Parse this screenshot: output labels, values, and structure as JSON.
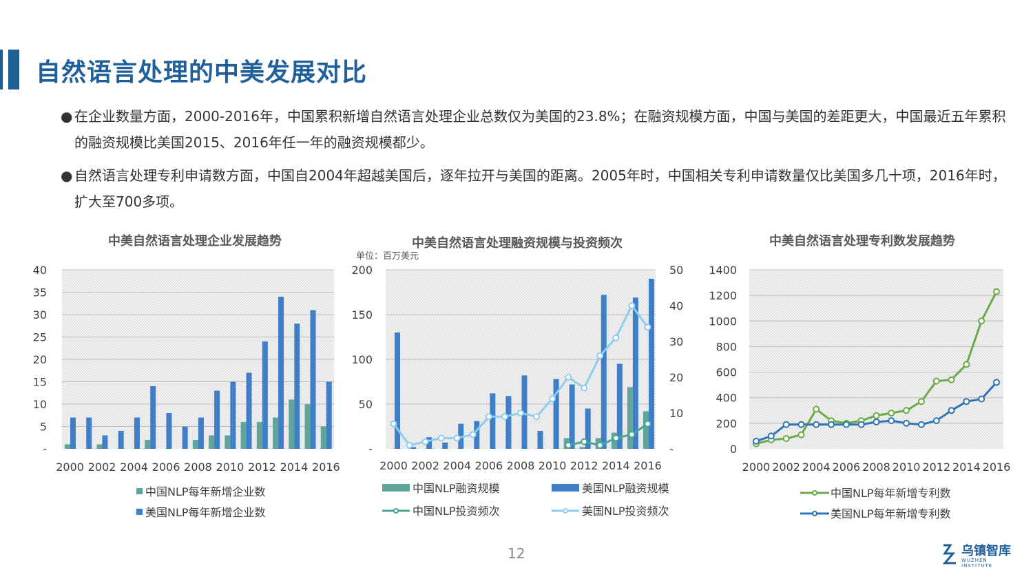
{
  "page": {
    "title": "自然语言处理的中美发展对比",
    "bullets": [
      "在企业数量方面，2000-2016年，中国累积新增自然语言处理企业总数仅为美国的23.8%；在融资规模方面，中国与美国的差距更大，中国最近五年累积的融资规模比美国2015、2016年任一年的融资规模都少。",
      "自然语言处理专利申请数方面，中国自2004年超越美国后，逐年拉开与美国的距离。2005年时，中国相关专利申请数量仅比美国多几十项，2016年时，扩大至700多项。"
    ],
    "page_number": "12",
    "logo": {
      "name": "乌镇智库",
      "sub": "WUZHEN INSTITUTE"
    },
    "colors": {
      "accent": "#1f5f9a",
      "us_bar": "#3f7fc8",
      "cn_bar": "#5fa59a",
      "cn_line_green": "#6aab46",
      "us_line_blue": "#2e75b6",
      "cn_line_teal": "#4aa596",
      "us_line_light": "#8fcdf0"
    }
  },
  "chart_data": [
    {
      "type": "bar",
      "title": "中美自然语言处理企业发展趋势",
      "categories": [
        "2000",
        "2001",
        "2002",
        "2003",
        "2004",
        "2005",
        "2006",
        "2007",
        "2008",
        "2009",
        "2010",
        "2011",
        "2012",
        "2013",
        "2014",
        "2015",
        "2016"
      ],
      "x_tick_labels": [
        "2000",
        "2002",
        "2004",
        "2006",
        "2008",
        "2010",
        "2012",
        "2014",
        "2016"
      ],
      "y_ticks": [
        "-",
        "5",
        "10",
        "15",
        "20",
        "25",
        "30",
        "35",
        "40"
      ],
      "ylim": [
        0,
        40
      ],
      "series": [
        {
          "name": "中国NLP每年新增企业数",
          "values": [
            1,
            0,
            1,
            0,
            0,
            2,
            0,
            0,
            2,
            3,
            3,
            6,
            6,
            7,
            11,
            10,
            5
          ]
        },
        {
          "name": "美国NLP每年新增企业数",
          "values": [
            7,
            7,
            3,
            4,
            7,
            14,
            8,
            5,
            7,
            13,
            15,
            17,
            24,
            34,
            28,
            31,
            15
          ]
        }
      ],
      "legend": "bottom"
    },
    {
      "type": "bar",
      "title": "中美自然语言处理融资规模与投资频次",
      "unit_label": "单位：百万美元",
      "categories": [
        "2000",
        "2001",
        "2002",
        "2003",
        "2004",
        "2005",
        "2006",
        "2007",
        "2008",
        "2009",
        "2010",
        "2011",
        "2012",
        "2013",
        "2014",
        "2015",
        "2016"
      ],
      "x_tick_labels": [
        "2000",
        "2002",
        "2004",
        "2006",
        "2008",
        "2010",
        "2012",
        "2014",
        "2016"
      ],
      "y_ticks": [
        "-",
        "50",
        "100",
        "150",
        "200"
      ],
      "y2_ticks": [
        "-",
        "10",
        "20",
        "30",
        "40",
        "50"
      ],
      "ylim": [
        0,
        200
      ],
      "y2lim": [
        0,
        50
      ],
      "series": [
        {
          "name": "中国NLP融资规模",
          "kind": "bar",
          "values": [
            0,
            0,
            0,
            0,
            0,
            0,
            0,
            0,
            0,
            0,
            0,
            12,
            2,
            12,
            18,
            69,
            42
          ]
        },
        {
          "name": "美国NLP融资规模",
          "kind": "bar",
          "values": [
            130,
            2,
            13,
            7,
            28,
            31,
            62,
            59,
            82,
            20,
            78,
            72,
            45,
            172,
            95,
            169,
            190
          ]
        },
        {
          "name": "中国NLP投资频次",
          "kind": "line",
          "axis": "right",
          "values": [
            null,
            null,
            null,
            null,
            null,
            null,
            null,
            null,
            null,
            null,
            null,
            1,
            2,
            1,
            3,
            4,
            7
          ]
        },
        {
          "name": "美国NLP投资频次",
          "kind": "line",
          "axis": "right",
          "values": [
            7,
            1,
            2,
            3,
            3,
            4,
            9,
            9,
            10,
            9,
            14,
            20,
            17,
            26,
            31,
            40,
            34
          ]
        }
      ],
      "legend": "bottom"
    },
    {
      "type": "line",
      "title": "中美自然语言处理专利数发展趋势",
      "categories": [
        "2000",
        "2001",
        "2002",
        "2003",
        "2004",
        "2005",
        "2006",
        "2007",
        "2008",
        "2009",
        "2010",
        "2011",
        "2012",
        "2013",
        "2014",
        "2015",
        "2016"
      ],
      "x_tick_labels": [
        "2000",
        "2002",
        "2004",
        "2006",
        "2008",
        "2010",
        "2012",
        "2014",
        "2016"
      ],
      "y_ticks": [
        "0",
        "200",
        "400",
        "600",
        "800",
        "1000",
        "1200",
        "1400"
      ],
      "ylim": [
        0,
        1400
      ],
      "series": [
        {
          "name": "中国NLP每年新增专利数",
          "values": [
            40,
            70,
            80,
            110,
            310,
            220,
            200,
            220,
            260,
            280,
            300,
            370,
            530,
            540,
            660,
            1000,
            1230
          ]
        },
        {
          "name": "美国NLP每年新增专利数",
          "values": [
            60,
            100,
            190,
            190,
            190,
            190,
            190,
            190,
            210,
            220,
            200,
            190,
            220,
            300,
            370,
            390,
            520
          ]
        }
      ],
      "legend": "bottom"
    }
  ]
}
